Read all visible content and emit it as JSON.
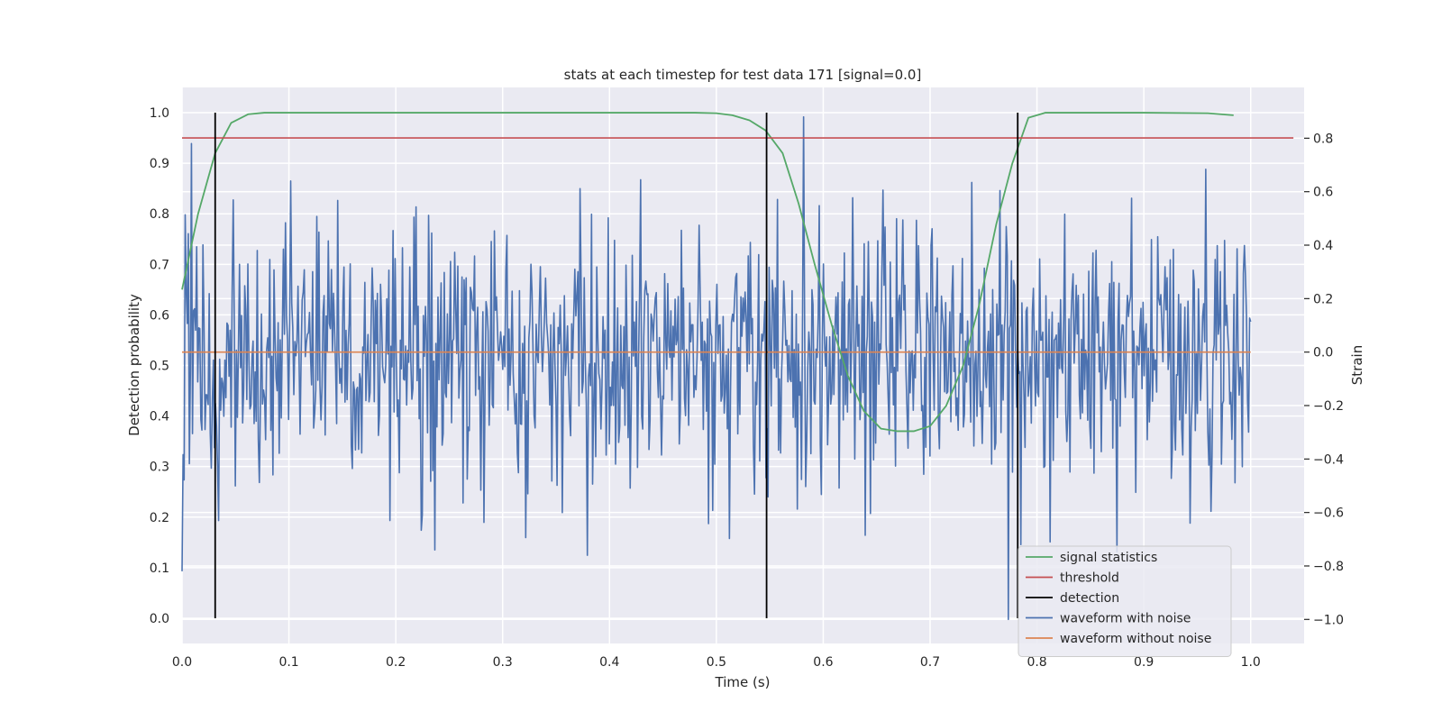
{
  "chart_data": {
    "type": "line",
    "title": "stats at each timestep for test data 171 [signal=0.0]",
    "xlabel": "Time (s)",
    "ylabel": "Detection probability",
    "y2label": "Strain",
    "xlim": [
      0.0,
      1.05
    ],
    "ylim": [
      -0.05,
      1.05
    ],
    "y2lim": [
      -1.09,
      0.99
    ],
    "xticks": [
      0.0,
      0.1,
      0.2,
      0.3,
      0.4,
      0.5,
      0.6,
      0.7,
      0.8,
      0.9,
      1.0
    ],
    "xtick_labels": [
      "0.0",
      "0.1",
      "0.2",
      "0.3",
      "0.4",
      "0.5",
      "0.6",
      "0.7",
      "0.8",
      "0.9",
      "1.0"
    ],
    "yticks": [
      0.0,
      0.1,
      0.2,
      0.3,
      0.4,
      0.5,
      0.6,
      0.7,
      0.8,
      0.9,
      1.0
    ],
    "ytick_labels": [
      "0.0",
      "0.1",
      "0.2",
      "0.3",
      "0.4",
      "0.5",
      "0.6",
      "0.7",
      "0.8",
      "0.9",
      "1.0"
    ],
    "y2ticks": [
      -1.0,
      -0.8,
      -0.6,
      -0.4,
      -0.2,
      0.0,
      0.2,
      0.4,
      0.6,
      0.8
    ],
    "y2tick_labels": [
      "−1.0",
      "−0.8",
      "−0.6",
      "−0.4",
      "−0.2",
      "0.0",
      "0.2",
      "0.4",
      "0.6",
      "0.8"
    ],
    "grid": true,
    "legend_position": "bottom-right",
    "series": [
      {
        "name": "signal statistics",
        "color": "#55a868",
        "axis": "left",
        "x": [
          0.0,
          0.015,
          0.031,
          0.046,
          0.062,
          0.077,
          0.092,
          0.108,
          0.2,
          0.3,
          0.4,
          0.48,
          0.5,
          0.515,
          0.531,
          0.546,
          0.562,
          0.577,
          0.592,
          0.608,
          0.623,
          0.638,
          0.654,
          0.669,
          0.685,
          0.7,
          0.715,
          0.731,
          0.746,
          0.762,
          0.777,
          0.792,
          0.808,
          0.823,
          0.9,
          0.96,
          0.984
        ],
        "y": [
          0.65,
          0.8,
          0.92,
          0.98,
          0.997,
          1.0,
          1.0,
          1.0,
          1.0,
          1.0,
          1.0,
          1.0,
          0.999,
          0.995,
          0.985,
          0.965,
          0.92,
          0.82,
          0.7,
          0.58,
          0.48,
          0.41,
          0.375,
          0.37,
          0.37,
          0.38,
          0.42,
          0.5,
          0.62,
          0.78,
          0.9,
          0.99,
          1.0,
          1.0,
          1.0,
          0.999,
          0.995
        ]
      },
      {
        "name": "threshold",
        "color": "#c44e52",
        "axis": "left",
        "x": [
          0.0,
          1.04
        ],
        "y": [
          0.95,
          0.95
        ]
      },
      {
        "name": "detection",
        "color": "#000000",
        "axis": "left",
        "type": "vlines",
        "x": [
          0.031,
          0.547,
          0.782
        ],
        "ymin": 0.0,
        "ymax": 1.0
      },
      {
        "name": "waveform with noise",
        "color": "#4c72b0",
        "axis": "right",
        "type": "noise",
        "x_range": [
          0.0,
          1.0
        ],
        "n_points": 1024,
        "std": 0.24,
        "peaks": [
          {
            "x": 0.009,
            "y": 0.78
          },
          {
            "x": 0.102,
            "y": 0.64
          },
          {
            "x": 0.034,
            "y": -0.63
          },
          {
            "x": 0.195,
            "y": -0.63
          },
          {
            "x": 0.237,
            "y": -0.74
          },
          {
            "x": 0.379,
            "y": -0.76
          },
          {
            "x": 0.582,
            "y": 0.88
          },
          {
            "x": 0.773,
            "y": -1.0
          },
          {
            "x": 0.785,
            "y": -0.72
          },
          {
            "x": 0.812,
            "y": -0.71
          }
        ]
      },
      {
        "name": "waveform without noise",
        "color": "#dd8452",
        "axis": "right",
        "x": [
          0.0,
          1.0
        ],
        "y": [
          0.0,
          0.0
        ]
      }
    ]
  }
}
